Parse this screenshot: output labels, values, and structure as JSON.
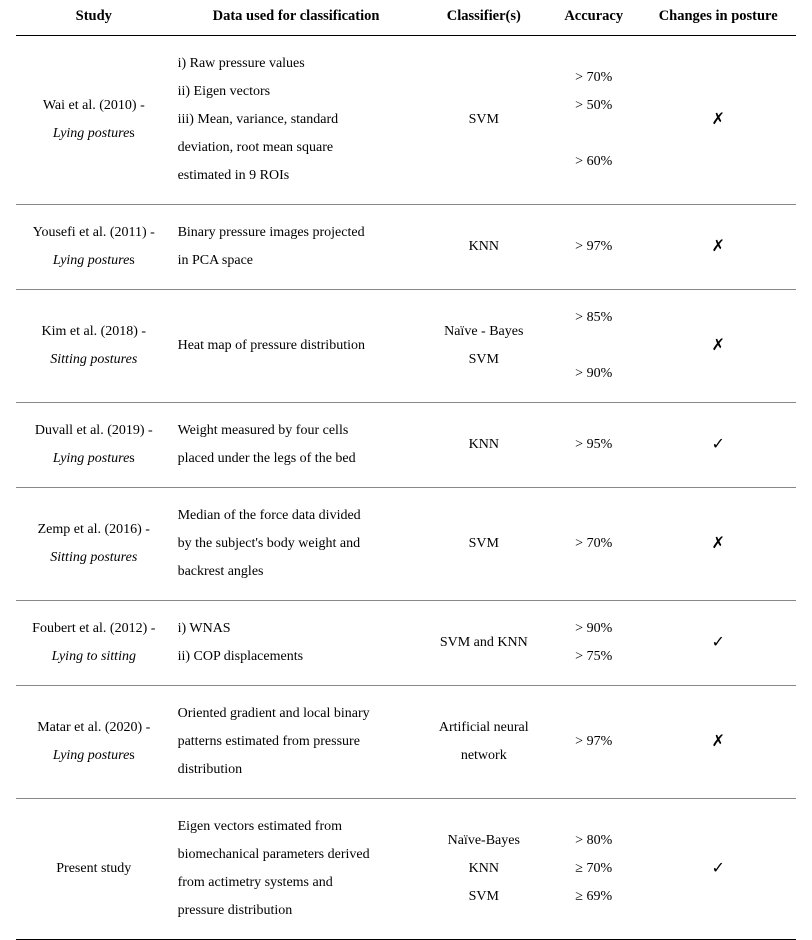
{
  "headers": {
    "study": "Study",
    "data": "Data used for classification",
    "classifier": "Classifier(s)",
    "accuracy": "Accuracy",
    "changes": "Changes in posture"
  },
  "rows": [
    {
      "study_main": "Wai et al. (2010) -",
      "study_sub_ital": "Lying posture",
      "study_sub_plain": "s",
      "data_lines": [
        "i) Raw pressure values",
        "ii) Eigen vectors",
        "iii) Mean, variance, standard",
        "deviation, root mean square",
        "estimated in 9 ROIs"
      ],
      "class_lines": [
        "SVM"
      ],
      "acc_lines": [
        "> 70%",
        "> 50%",
        "",
        "> 60%"
      ],
      "mark_lines": [
        "✗"
      ]
    },
    {
      "study_main": "Yousefi et al. (2011) -",
      "study_sub_ital": "Lying posture",
      "study_sub_plain": "s",
      "data_lines": [
        "Binary pressure images projected",
        "in PCA space"
      ],
      "class_lines": [
        "KNN"
      ],
      "acc_lines": [
        "> 97%"
      ],
      "mark_lines": [
        "✗"
      ]
    },
    {
      "study_main": "Kim et al. (2018) -",
      "study_sub_ital": "Sitting postures",
      "study_sub_plain": "",
      "data_lines": [
        "Heat map of pressure distribution"
      ],
      "class_lines": [
        "Naïve - Bayes",
        "SVM"
      ],
      "acc_lines": [
        "> 85%",
        "",
        "> 90%"
      ],
      "mark_lines": [
        "✗"
      ]
    },
    {
      "study_main": "Duvall et al. (2019) -",
      "study_sub_ital": "Lying posture",
      "study_sub_plain": "s",
      "data_lines": [
        "Weight measured by four cells",
        "placed under the legs of the bed"
      ],
      "class_lines": [
        "KNN"
      ],
      "acc_lines": [
        "> 95%"
      ],
      "mark_lines": [
        "✓"
      ]
    },
    {
      "study_main": "Zemp et al. (2016) -",
      "study_sub_ital": "Sitting postures",
      "study_sub_plain": "",
      "data_lines": [
        "Median of the force data divided",
        "by the subject's body weight and",
        "backrest angles"
      ],
      "class_lines": [
        "SVM"
      ],
      "acc_lines": [
        "> 70%"
      ],
      "mark_lines": [
        "✗"
      ]
    },
    {
      "study_main": "Foubert et al. (2012) -",
      "study_sub_ital": "Lying to sitting",
      "study_sub_plain": "",
      "data_lines": [
        "i) WNAS",
        "ii) COP displacements"
      ],
      "class_lines": [
        "SVM and KNN"
      ],
      "acc_lines": [
        "> 90%",
        "> 75%"
      ],
      "mark_lines": [
        "✓"
      ]
    },
    {
      "study_main": "Matar et al. (2020) -",
      "study_sub_ital": "Lying posture",
      "study_sub_plain": "s",
      "data_lines": [
        "Oriented gradient and local binary",
        "patterns estimated from pressure",
        "distribution"
      ],
      "class_lines": [
        "Artificial neural",
        "network"
      ],
      "acc_lines": [
        "> 97%"
      ],
      "mark_lines": [
        "✗"
      ]
    },
    {
      "study_main": "Present study",
      "study_sub_ital": "",
      "study_sub_plain": "",
      "data_lines": [
        "Eigen vectors estimated from",
        "biomechanical parameters derived",
        "from actimetry systems and",
        "pressure distribution"
      ],
      "class_lines": [
        "Naïve-Bayes",
        "KNN",
        "SVM"
      ],
      "acc_lines": [
        "> 80%",
        "≥ 70%",
        "≥ 69%"
      ],
      "mark_lines": [
        "✓"
      ]
    }
  ]
}
